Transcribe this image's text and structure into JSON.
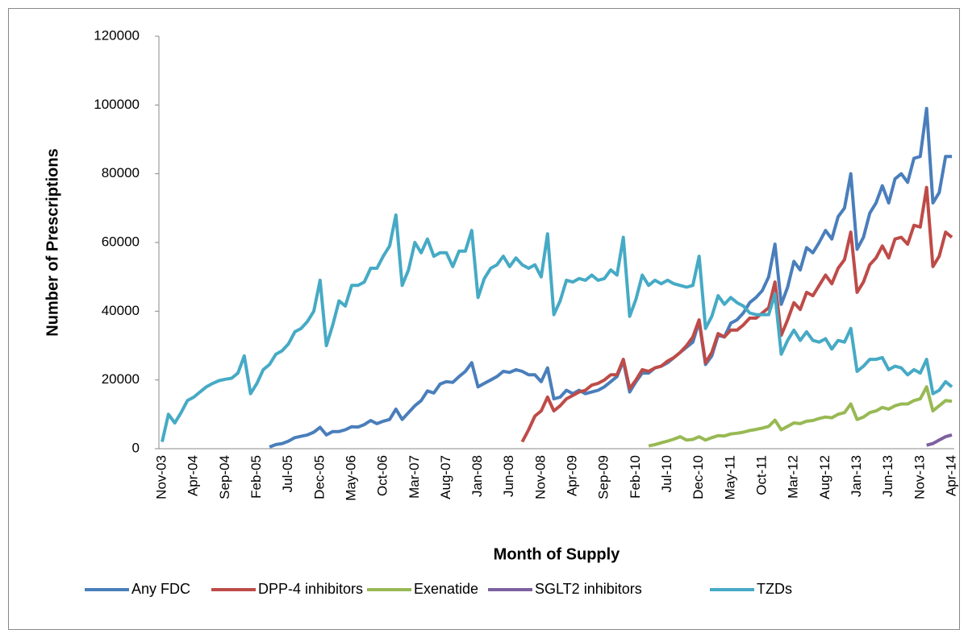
{
  "chart_data": {
    "type": "line",
    "x_label": "Month of Supply",
    "y_label": "Number of Prescriptions",
    "categories": [
      "Nov-03",
      null,
      null,
      null,
      null,
      "Apr-04",
      null,
      null,
      null,
      null,
      "Sep-04",
      null,
      null,
      null,
      null,
      "Feb-05",
      null,
      null,
      null,
      null,
      "Jul-05",
      null,
      null,
      null,
      null,
      "Dec-05",
      null,
      null,
      null,
      null,
      "May-06",
      null,
      null,
      null,
      null,
      "Oct-06",
      null,
      null,
      null,
      null,
      "Mar-07",
      null,
      null,
      null,
      null,
      "Aug-07",
      null,
      null,
      null,
      null,
      "Jan-08",
      null,
      null,
      null,
      null,
      "Jun-08",
      null,
      null,
      null,
      null,
      "Nov-08",
      null,
      null,
      null,
      null,
      "Apr-09",
      null,
      null,
      null,
      null,
      "Sep-09",
      null,
      null,
      null,
      null,
      "Feb-10",
      null,
      null,
      null,
      null,
      "Jul-10",
      null,
      null,
      null,
      null,
      "Dec-10",
      null,
      null,
      null,
      null,
      "May-11",
      null,
      null,
      null,
      null,
      "Oct-11",
      null,
      null,
      null,
      null,
      "Mar-12",
      null,
      null,
      null,
      null,
      "Aug-12",
      null,
      null,
      null,
      null,
      "Jan-13",
      null,
      null,
      null,
      null,
      "Jun-13",
      null,
      null,
      null,
      null,
      "Nov-13",
      null,
      null,
      null,
      null,
      "Apr-14"
    ],
    "ylim": [
      0,
      120000
    ],
    "yticks": [
      0,
      20000,
      40000,
      60000,
      80000,
      100000,
      120000
    ],
    "grid": false,
    "legend": "bottom",
    "series": [
      {
        "name": "Any FDC",
        "color": "#4a7ebb",
        "values": [
          null,
          null,
          null,
          null,
          null,
          null,
          null,
          null,
          null,
          null,
          null,
          null,
          null,
          null,
          null,
          null,
          null,
          500,
          1200,
          1500,
          2200,
          3200,
          3600,
          4000,
          4800,
          6200,
          4000,
          5000,
          5000,
          5500,
          6400,
          6300,
          7000,
          8200,
          7300,
          8000,
          8500,
          11500,
          8500,
          10500,
          12500,
          14000,
          16800,
          16200,
          18800,
          19500,
          19300,
          21000,
          22500,
          25000,
          18000,
          19000,
          20000,
          21000,
          22500,
          22200,
          23000,
          22500,
          21500,
          21500,
          19500,
          23500,
          14500,
          15000,
          17000,
          16000,
          17000,
          16000,
          16500,
          17000,
          18000,
          19500,
          21000,
          25500,
          16500,
          19500,
          22000,
          22000,
          23500,
          24000,
          25000,
          26500,
          28000,
          29500,
          31000,
          37000,
          24500,
          27000,
          33000,
          32500,
          36500,
          37500,
          39500,
          42500,
          44000,
          46000,
          50000,
          59500,
          42000,
          47000,
          54500,
          52000,
          58500,
          57000,
          60000,
          63500,
          61000,
          67500,
          70000,
          80000,
          58000,
          61500,
          68500,
          71500,
          76500,
          71500,
          78500,
          80000,
          77500,
          84500,
          85000,
          99000,
          71500,
          74500,
          85000,
          85000
        ]
      },
      {
        "name": "DPP-4 inhibitors",
        "color": "#be4b48",
        "values": [
          null,
          null,
          null,
          null,
          null,
          null,
          null,
          null,
          null,
          null,
          null,
          null,
          null,
          null,
          null,
          null,
          null,
          null,
          null,
          null,
          null,
          null,
          null,
          null,
          null,
          null,
          null,
          null,
          null,
          null,
          null,
          null,
          null,
          null,
          null,
          null,
          null,
          null,
          null,
          null,
          null,
          null,
          null,
          null,
          null,
          null,
          null,
          null,
          null,
          null,
          null,
          null,
          null,
          null,
          null,
          null,
          null,
          2000,
          5500,
          9500,
          11000,
          15000,
          11000,
          12500,
          14500,
          15500,
          16500,
          17000,
          18500,
          19000,
          20000,
          21500,
          21500,
          26000,
          17500,
          20000,
          23000,
          22500,
          23500,
          24000,
          25500,
          26500,
          28000,
          30000,
          32500,
          37500,
          25000,
          28000,
          33500,
          32500,
          34500,
          34500,
          36000,
          38000,
          38000,
          39500,
          41000,
          48500,
          33000,
          37500,
          42500,
          40500,
          45500,
          44500,
          47500,
          50500,
          48000,
          52500,
          55000,
          63000,
          45500,
          48500,
          53500,
          55500,
          59000,
          55500,
          61000,
          61500,
          59500,
          65000,
          64500,
          76000,
          53000,
          56000,
          63000,
          61500
        ]
      },
      {
        "name": "Exenatide",
        "color": "#98b954",
        "values": [
          null,
          null,
          null,
          null,
          null,
          null,
          null,
          null,
          null,
          null,
          null,
          null,
          null,
          null,
          null,
          null,
          null,
          null,
          null,
          null,
          null,
          null,
          null,
          null,
          null,
          null,
          null,
          null,
          null,
          null,
          null,
          null,
          null,
          null,
          null,
          null,
          null,
          null,
          null,
          null,
          null,
          null,
          null,
          null,
          null,
          null,
          null,
          null,
          null,
          null,
          null,
          null,
          null,
          null,
          null,
          null,
          null,
          null,
          null,
          null,
          null,
          null,
          null,
          null,
          null,
          null,
          null,
          null,
          null,
          null,
          null,
          null,
          null,
          null,
          null,
          null,
          null,
          800,
          1200,
          1700,
          2200,
          2800,
          3500,
          2500,
          2700,
          3500,
          2500,
          3200,
          3800,
          3700,
          4300,
          4500,
          4800,
          5300,
          5600,
          6000,
          6500,
          8300,
          5500,
          6500,
          7500,
          7300,
          8000,
          8200,
          8800,
          9200,
          9000,
          10000,
          10500,
          13000,
          8500,
          9200,
          10500,
          11000,
          12000,
          11500,
          12500,
          13000,
          13000,
          14000,
          14500,
          18000,
          11000,
          12500,
          14000,
          13800
        ]
      },
      {
        "name": "SGLT2 inhibitors",
        "color": "#7d60a0",
        "values": [
          null,
          null,
          null,
          null,
          null,
          null,
          null,
          null,
          null,
          null,
          null,
          null,
          null,
          null,
          null,
          null,
          null,
          null,
          null,
          null,
          null,
          null,
          null,
          null,
          null,
          null,
          null,
          null,
          null,
          null,
          null,
          null,
          null,
          null,
          null,
          null,
          null,
          null,
          null,
          null,
          null,
          null,
          null,
          null,
          null,
          null,
          null,
          null,
          null,
          null,
          null,
          null,
          null,
          null,
          null,
          null,
          null,
          null,
          null,
          null,
          null,
          null,
          null,
          null,
          null,
          null,
          null,
          null,
          null,
          null,
          null,
          null,
          null,
          null,
          null,
          null,
          null,
          null,
          null,
          null,
          null,
          null,
          null,
          null,
          null,
          null,
          null,
          null,
          null,
          null,
          null,
          null,
          null,
          null,
          null,
          null,
          null,
          null,
          null,
          null,
          null,
          null,
          null,
          null,
          null,
          null,
          null,
          null,
          null,
          null,
          null,
          null,
          null,
          null,
          null,
          null,
          null,
          null,
          null,
          null,
          null,
          1000,
          1500,
          2500,
          3500,
          4000
        ]
      },
      {
        "name": "TZDs",
        "color": "#46aac5",
        "values": [
          2000,
          10000,
          7500,
          10500,
          14000,
          15000,
          16500,
          18000,
          19000,
          19800,
          20200,
          20500,
          22000,
          27000,
          16000,
          19000,
          23000,
          24500,
          27500,
          28500,
          30500,
          34000,
          35000,
          37000,
          40000,
          49000,
          30000,
          36000,
          43000,
          41500,
          47500,
          47500,
          48500,
          52500,
          52500,
          56000,
          59000,
          68000,
          47500,
          52000,
          60000,
          57000,
          61000,
          56000,
          57000,
          57000,
          53000,
          57500,
          57500,
          63500,
          44000,
          49500,
          52500,
          53500,
          56000,
          53000,
          55500,
          53500,
          52500,
          53500,
          50000,
          62500,
          39000,
          43000,
          49000,
          48500,
          49500,
          49000,
          50500,
          49000,
          49500,
          52000,
          50500,
          61500,
          38500,
          43500,
          50500,
          47500,
          49000,
          48000,
          49000,
          48000,
          47500,
          47000,
          47500,
          56000,
          35000,
          38500,
          44500,
          42000,
          44000,
          42500,
          41500,
          39500,
          39000,
          39000,
          39000,
          45000,
          27500,
          31500,
          34500,
          31500,
          34000,
          31500,
          31000,
          32000,
          29000,
          31500,
          31000,
          35000,
          22500,
          24000,
          26000,
          26000,
          26500,
          23000,
          24000,
          23500,
          21500,
          23000,
          22000,
          26000,
          16000,
          17000,
          19500,
          18000
        ]
      }
    ]
  }
}
